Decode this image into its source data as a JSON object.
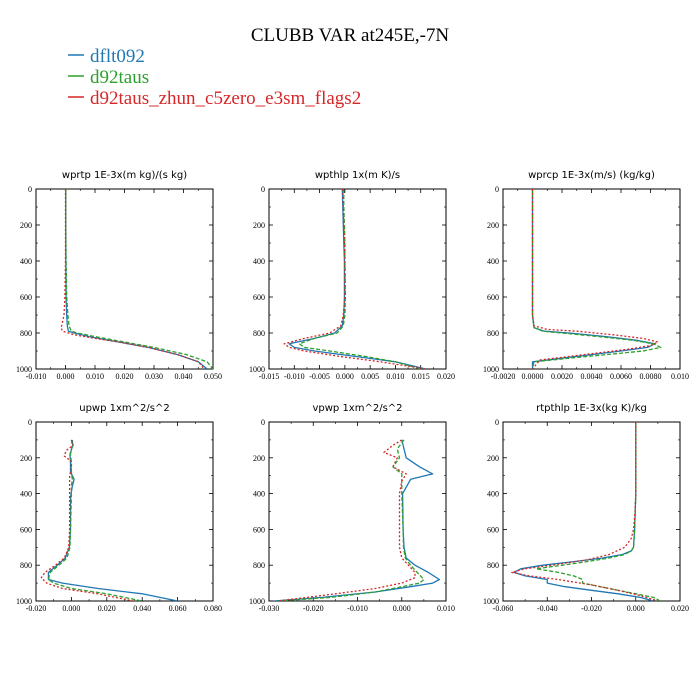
{
  "figure": {
    "title": "CLUBB VAR at245E,-7N",
    "colors": {
      "dflt092": "#1f77b4",
      "d92taus": "#2ca02c",
      "zhun": "#d62728"
    },
    "legend": [
      {
        "label": "dflt092",
        "color": "#1f77b4"
      },
      {
        "label": "d92taus",
        "color": "#2ca02c"
      },
      {
        "label": "d92taus_zhun_c5zero_e3sm_flags2",
        "color": "#d62728"
      }
    ]
  },
  "chart_data": [
    {
      "type": "line",
      "title": "wprtp   1E-3x(m kg)/(s kg)",
      "xlim": [
        -0.01,
        0.05
      ],
      "ylim": [
        1000,
        0
      ],
      "xticks": [
        -0.01,
        0.0,
        0.01,
        0.02,
        0.03,
        0.04,
        0.05
      ],
      "xtick_labels": [
        "-0.010",
        "0.000",
        "0.010",
        "0.020",
        "0.030",
        "0.040",
        "0.050"
      ],
      "yticks": [
        0,
        200,
        400,
        600,
        800,
        1000
      ],
      "series": [
        {
          "name": "dflt092",
          "y": [
            0,
            200,
            400,
            600,
            700,
            760,
            790,
            800,
            820,
            850,
            880,
            920,
            960,
            1000
          ],
          "x": [
            0.0001,
            0.0001,
            0.0001,
            0.0002,
            0.0004,
            0.0006,
            0.001,
            0.003,
            0.008,
            0.018,
            0.028,
            0.038,
            0.045,
            0.048
          ]
        },
        {
          "name": "d92taus",
          "y": [
            0,
            200,
            400,
            600,
            700,
            760,
            790,
            800,
            820,
            850,
            880,
            920,
            960,
            1000
          ],
          "x": [
            0.0001,
            0.0001,
            0.0002,
            0.0004,
            0.0008,
            0.0012,
            0.002,
            0.004,
            0.01,
            0.02,
            0.03,
            0.041,
            0.048,
            0.05
          ]
        },
        {
          "name": "d92taus_zhun_c5zero_e3sm_flags2",
          "y": [
            0,
            200,
            400,
            600,
            700,
            740,
            770,
            790,
            810,
            830,
            850,
            880,
            920,
            960,
            1000
          ],
          "x": [
            0.0,
            0.0,
            0.0,
            -0.0002,
            -0.0005,
            -0.001,
            -0.0015,
            -0.001,
            0.003,
            0.01,
            0.018,
            0.028,
            0.038,
            0.045,
            0.047
          ]
        }
      ]
    },
    {
      "type": "line",
      "title": "wpthlp   1x(m K)/s",
      "xlim": [
        -0.015,
        0.02
      ],
      "ylim": [
        1000,
        0
      ],
      "xticks": [
        -0.015,
        -0.01,
        -0.005,
        0.0,
        0.005,
        0.01,
        0.015,
        0.02
      ],
      "xtick_labels": [
        "-0.015",
        "-0.010",
        "-0.005",
        "0.000",
        "0.005",
        "0.010",
        "0.015",
        "0.020"
      ],
      "yticks": [
        0,
        200,
        400,
        600,
        800,
        1000
      ],
      "series": [
        {
          "name": "dflt092",
          "y": [
            0,
            100,
            200,
            300,
            400,
            600,
            700,
            760,
            800,
            830,
            860,
            880,
            900,
            930,
            960,
            1000
          ],
          "x": [
            -0.0005,
            -0.0004,
            -0.0003,
            -0.0002,
            -0.0001,
            -0.0001,
            -0.0002,
            -0.0005,
            -0.002,
            -0.006,
            -0.011,
            -0.01,
            -0.006,
            0.002,
            0.01,
            0.016
          ]
        },
        {
          "name": "d92taus",
          "y": [
            0,
            100,
            200,
            300,
            400,
            600,
            700,
            760,
            800,
            830,
            860,
            880,
            900,
            930,
            960,
            1000
          ],
          "x": [
            -0.0002,
            -0.0002,
            -0.0001,
            0.0,
            0.0,
            0.0001,
            0.0,
            -0.0003,
            -0.0015,
            -0.006,
            -0.009,
            -0.008,
            -0.003,
            0.004,
            0.01,
            0.015
          ]
        },
        {
          "name": "d92taus_zhun_c5zero_e3sm_flags2",
          "y": [
            0,
            100,
            200,
            300,
            400,
            600,
            700,
            760,
            800,
            830,
            860,
            880,
            900,
            930,
            960,
            1000
          ],
          "x": [
            -0.0004,
            -0.0003,
            -0.0002,
            -0.0001,
            0.0,
            0.0,
            -0.0003,
            -0.0008,
            -0.003,
            -0.008,
            -0.012,
            -0.011,
            -0.008,
            -0.001,
            0.007,
            0.016
          ]
        }
      ]
    },
    {
      "type": "line",
      "title": "wprcp   1E-3x(m/s) (kg/kg)",
      "xlim": [
        -0.002,
        0.01
      ],
      "ylim": [
        1000,
        0
      ],
      "xticks": [
        -0.002,
        0.0,
        0.002,
        0.004,
        0.006,
        0.008,
        0.01
      ],
      "xtick_labels": [
        "-0.0020",
        "0.0000",
        "0.0020",
        "0.0040",
        "0.0060",
        "0.0080",
        "0.010"
      ],
      "yticks": [
        0,
        200,
        400,
        600,
        800,
        1000
      ],
      "series": [
        {
          "name": "dflt092",
          "y": [
            0,
            400,
            700,
            770,
            790,
            800,
            820,
            840,
            860,
            880,
            900,
            920,
            940,
            960,
            1000
          ],
          "x": [
            0.0,
            0.0,
            0.0,
            0.0001,
            0.0008,
            0.0025,
            0.005,
            0.007,
            0.0083,
            0.0078,
            0.006,
            0.004,
            0.002,
            0.0,
            0.0
          ]
        },
        {
          "name": "d92taus",
          "y": [
            0,
            400,
            700,
            770,
            790,
            800,
            820,
            840,
            860,
            880,
            900,
            920,
            940,
            960,
            1000
          ],
          "x": [
            0.0,
            0.0,
            0.0,
            0.0001,
            0.0007,
            0.002,
            0.0045,
            0.0068,
            0.0082,
            0.0087,
            0.0075,
            0.005,
            0.0025,
            0.0001,
            0.0
          ]
        },
        {
          "name": "d92taus_zhun_c5zero_e3sm_flags2",
          "y": [
            0,
            400,
            700,
            760,
            780,
            790,
            810,
            830,
            850,
            870,
            890,
            910,
            930,
            950,
            1000
          ],
          "x": [
            0.0,
            0.0,
            0.0,
            0.0001,
            0.001,
            0.003,
            0.0055,
            0.0075,
            0.0085,
            0.008,
            0.0065,
            0.0045,
            0.0025,
            0.0005,
            0.0
          ]
        }
      ]
    },
    {
      "type": "line",
      "title": "upwp   1xm^2/s^2",
      "xlim": [
        -0.02,
        0.08
      ],
      "ylim": [
        1000,
        0
      ],
      "xticks": [
        -0.02,
        0.0,
        0.02,
        0.04,
        0.06,
        0.08
      ],
      "xtick_labels": [
        "-0.020",
        "0.000",
        "0.020",
        "0.040",
        "0.060",
        "0.080"
      ],
      "yticks": [
        0,
        200,
        400,
        600,
        800,
        1000
      ],
      "series": [
        {
          "name": "dflt092",
          "y": [
            100,
            130,
            180,
            230,
            280,
            320,
            360,
            420,
            600,
            700,
            760,
            800,
            840,
            880,
            900,
            930,
            960,
            1000
          ],
          "x": [
            0.0005,
            0.0008,
            -0.0008,
            -0.0005,
            -0.0005,
            0.0015,
            0.0005,
            -0.0005,
            -0.0005,
            -0.0012,
            -0.0035,
            -0.008,
            -0.013,
            -0.013,
            -0.005,
            0.015,
            0.04,
            0.06
          ]
        },
        {
          "name": "d92taus",
          "y": [
            100,
            130,
            180,
            230,
            280,
            320,
            360,
            420,
            600,
            700,
            760,
            800,
            840,
            880,
            900,
            930,
            960,
            1000
          ],
          "x": [
            0.0,
            0.0005,
            -0.0005,
            0.0,
            0.0,
            0.0005,
            0.0,
            0.0,
            -0.0005,
            -0.0008,
            -0.0025,
            -0.007,
            -0.012,
            -0.013,
            -0.01,
            0.0,
            0.02,
            0.04
          ]
        },
        {
          "name": "d92taus_zhun_c5zero_e3sm_flags2",
          "y": [
            100,
            130,
            160,
            190,
            220,
            260,
            300,
            360,
            420,
            600,
            700,
            760,
            800,
            840,
            870,
            900,
            930,
            960,
            1000
          ],
          "x": [
            0.0,
            0.001,
            -0.003,
            -0.004,
            0.0,
            0.0,
            -0.001,
            -0.001,
            -0.001,
            -0.001,
            -0.0015,
            -0.004,
            -0.009,
            -0.015,
            -0.017,
            -0.014,
            -0.005,
            0.015,
            0.035
          ]
        }
      ]
    },
    {
      "type": "line",
      "title": "vpwp   1xm^2/s^2",
      "xlim": [
        -0.03,
        0.01
      ],
      "ylim": [
        1000,
        0
      ],
      "xticks": [
        -0.03,
        -0.02,
        -0.01,
        0.0,
        0.01
      ],
      "xtick_labels": [
        "-0.030",
        "-0.020",
        "-0.010",
        "0.000",
        "0.010"
      ],
      "yticks": [
        0,
        200,
        400,
        600,
        800,
        1000
      ],
      "series": [
        {
          "name": "dflt092",
          "y": [
            100,
            150,
            200,
            250,
            290,
            320,
            400,
            600,
            700,
            760,
            800,
            840,
            880,
            900,
            920,
            950,
            980,
            1000
          ],
          "x": [
            0.0,
            0.0005,
            0.001,
            0.004,
            0.007,
            0.002,
            0.0002,
            0.0003,
            0.0005,
            0.001,
            0.003,
            0.006,
            0.0085,
            0.007,
            0.002,
            -0.006,
            -0.018,
            -0.029
          ]
        },
        {
          "name": "d92taus",
          "y": [
            100,
            150,
            200,
            250,
            290,
            320,
            400,
            600,
            700,
            760,
            800,
            840,
            880,
            900,
            920,
            950,
            980,
            1000
          ],
          "x": [
            0.0005,
            -0.001,
            -0.0005,
            -0.002,
            0.0,
            0.0,
            0.0,
            0.0003,
            0.0004,
            0.0008,
            0.002,
            0.0035,
            0.005,
            0.004,
            0.0,
            -0.006,
            -0.016,
            -0.028
          ]
        },
        {
          "name": "d92taus_zhun_c5zero_e3sm_flags2",
          "y": [
            100,
            130,
            170,
            200,
            250,
            290,
            330,
            400,
            600,
            700,
            760,
            800,
            840,
            870,
            900,
            930,
            960,
            1000
          ],
          "x": [
            0.0,
            -0.002,
            -0.004,
            -0.001,
            -0.002,
            0.001,
            0.0,
            -0.0005,
            -0.0005,
            -0.0005,
            0.0,
            0.0015,
            0.003,
            0.003,
            0.0,
            -0.006,
            -0.015,
            -0.028
          ]
        }
      ]
    },
    {
      "type": "line",
      "title": "rtpthlp   1E-3x(kg K)/kg",
      "xlim": [
        -0.06,
        0.02
      ],
      "ylim": [
        1000,
        0
      ],
      "xticks": [
        -0.06,
        -0.04,
        -0.02,
        0.0,
        0.02
      ],
      "xtick_labels": [
        "-0.060",
        "-0.040",
        "-0.020",
        "0.000",
        "0.020"
      ],
      "yticks": [
        0,
        200,
        400,
        600,
        800,
        1000
      ],
      "series": [
        {
          "name": "dflt092",
          "y": [
            0,
            400,
            600,
            700,
            720,
            740,
            760,
            780,
            800,
            820,
            840,
            860,
            880,
            900,
            920,
            940,
            960,
            980,
            1000
          ],
          "x": [
            0.0,
            0.0,
            -0.0005,
            -0.001,
            -0.002,
            -0.006,
            -0.015,
            -0.028,
            -0.042,
            -0.052,
            -0.055,
            -0.05,
            -0.04,
            -0.04,
            -0.032,
            -0.02,
            -0.008,
            0.002,
            0.008
          ]
        },
        {
          "name": "d92taus",
          "y": [
            0,
            400,
            600,
            700,
            720,
            740,
            760,
            780,
            800,
            820,
            840,
            860,
            880,
            900,
            920,
            940,
            960,
            980,
            1000
          ],
          "x": [
            0.0,
            0.0,
            -0.0005,
            -0.001,
            -0.002,
            -0.005,
            -0.012,
            -0.022,
            -0.033,
            -0.045,
            -0.035,
            -0.028,
            -0.024,
            -0.024,
            -0.016,
            -0.008,
            0.0,
            0.008,
            0.011
          ]
        },
        {
          "name": "d92taus_zhun_c5zero_e3sm_flags2",
          "y": [
            0,
            400,
            500,
            600,
            650,
            700,
            740,
            770,
            800,
            820,
            840,
            860,
            880,
            910,
            940,
            970,
            1000
          ],
          "x": [
            0.0,
            0.0,
            -0.0003,
            -0.001,
            -0.002,
            -0.005,
            -0.012,
            -0.022,
            -0.038,
            -0.05,
            -0.056,
            -0.048,
            -0.035,
            -0.02,
            -0.008,
            0.002,
            0.01
          ]
        }
      ]
    }
  ]
}
